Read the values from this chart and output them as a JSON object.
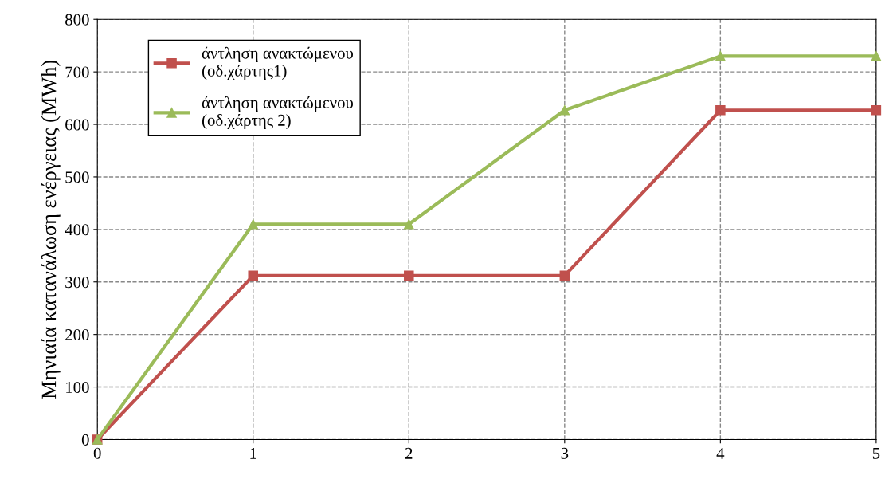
{
  "chart_data": {
    "type": "line",
    "ylabel": "Μηνιαία κατανάλωση ενέργειας (MWh)",
    "x": [
      0,
      1,
      2,
      3,
      4,
      5
    ],
    "xlim": [
      0,
      5
    ],
    "xticks": [
      0,
      1,
      2,
      3,
      4,
      5
    ],
    "ylim": [
      0,
      800
    ],
    "yticks": [
      0,
      100,
      200,
      300,
      400,
      500,
      600,
      700,
      800
    ],
    "grid": true,
    "legend": "top left",
    "line_style": "solid",
    "series": [
      {
        "name": "άντληση ανακτώμενου\n(οδ.χάρτης1)",
        "color": "#c0504d",
        "marker": "square",
        "values": [
          0,
          312,
          312,
          312,
          627,
          627
        ]
      },
      {
        "name": "άντληση ανακτώμενου\n(οδ.χάρτης 2)",
        "color": "#9bbb59",
        "marker": "triangle",
        "values": [
          0,
          410,
          410,
          627,
          730,
          730
        ]
      }
    ]
  }
}
